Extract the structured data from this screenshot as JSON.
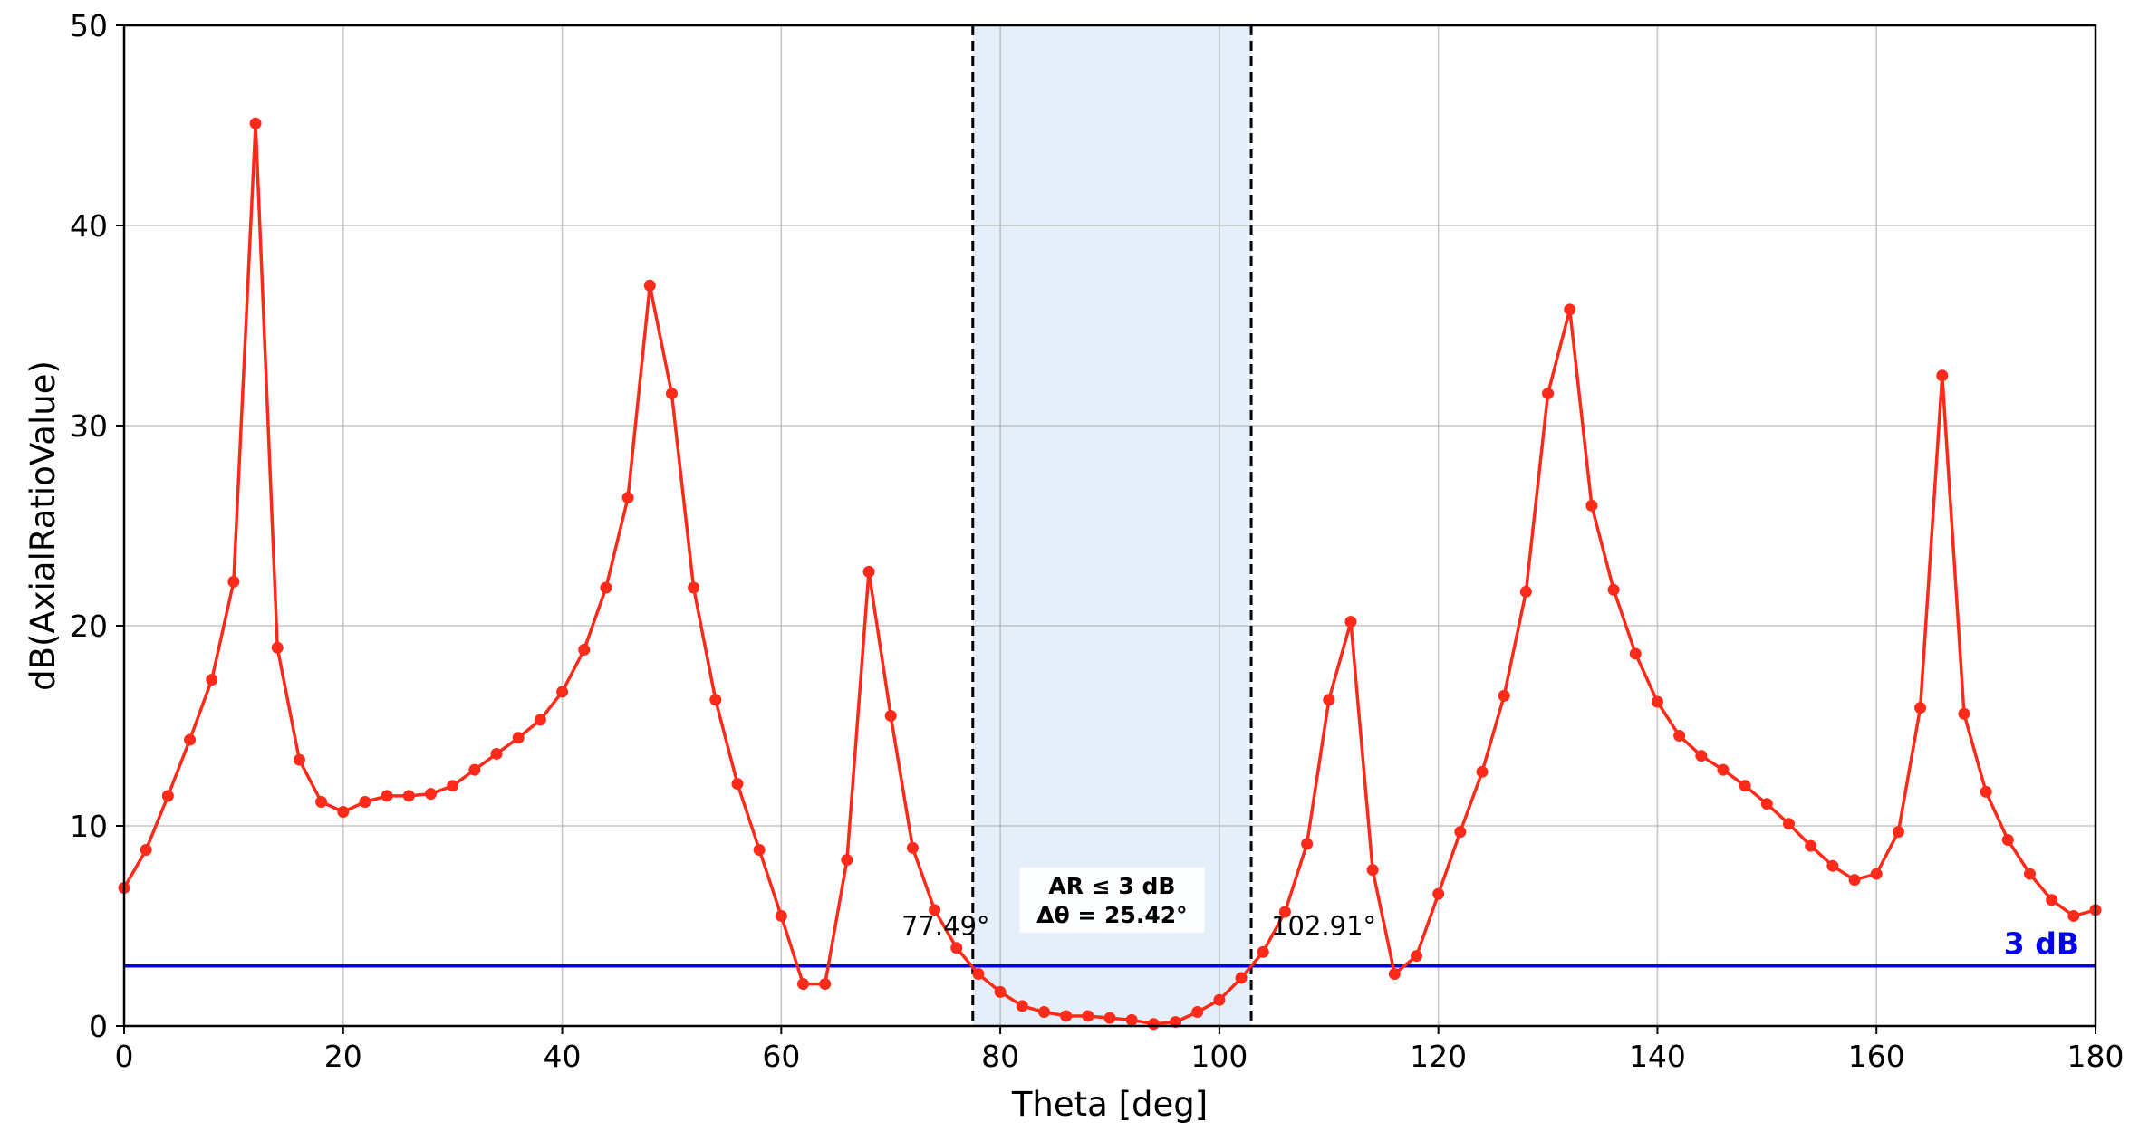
{
  "chart_data": {
    "type": "line",
    "xlabel": "Theta [deg]",
    "ylabel": "dB(AxialRatioValue)",
    "xlim": [
      0,
      180
    ],
    "ylim": [
      0,
      50
    ],
    "xticks": [
      0,
      20,
      40,
      60,
      80,
      100,
      120,
      140,
      160,
      180
    ],
    "yticks": [
      0,
      10,
      20,
      30,
      40,
      50
    ],
    "grid": true,
    "series": [
      {
        "color": "#ff2a1a",
        "marker": "circle",
        "x": [
          0,
          2,
          4,
          6,
          8,
          10,
          12,
          14,
          16,
          18,
          20,
          22,
          24,
          26,
          28,
          30,
          32,
          34,
          36,
          38,
          40,
          42,
          44,
          46,
          48,
          50,
          52,
          54,
          56,
          58,
          60,
          62,
          64,
          66,
          68,
          70,
          72,
          74,
          76,
          78,
          80,
          82,
          84,
          86,
          88,
          90,
          92,
          94,
          96,
          98,
          100,
          102,
          104,
          106,
          108,
          110,
          112,
          114,
          116,
          118,
          120,
          122,
          124,
          126,
          128,
          130,
          132,
          134,
          136,
          138,
          140,
          142,
          144,
          146,
          148,
          150,
          152,
          154,
          156,
          158,
          160,
          162,
          164,
          166,
          168,
          170,
          172,
          174,
          176,
          178,
          180
        ],
        "values": [
          6.9,
          8.8,
          11.5,
          14.3,
          17.3,
          22.2,
          45.1,
          18.9,
          13.3,
          11.2,
          10.7,
          11.2,
          11.5,
          11.5,
          11.6,
          12.0,
          12.8,
          13.6,
          14.4,
          15.3,
          16.7,
          18.8,
          21.9,
          26.4,
          37.0,
          31.6,
          21.9,
          16.3,
          12.1,
          8.8,
          5.5,
          2.1,
          2.1,
          8.3,
          22.7,
          15.5,
          8.9,
          5.8,
          3.9,
          2.6,
          1.7,
          1.0,
          0.7,
          0.5,
          0.5,
          0.4,
          0.3,
          0.1,
          0.2,
          0.7,
          1.3,
          2.4,
          3.7,
          5.7,
          9.1,
          16.3,
          20.2,
          7.8,
          2.6,
          3.5,
          6.6,
          9.7,
          12.7,
          16.5,
          21.7,
          31.6,
          35.8,
          26.0,
          21.8,
          18.6,
          16.2,
          14.5,
          13.5,
          12.8,
          12.0,
          11.1,
          10.1,
          9.0,
          8.0,
          7.3,
          7.6,
          9.7,
          15.9,
          32.5,
          15.6,
          11.7,
          9.3,
          7.6,
          6.3,
          5.5,
          5.8
        ]
      }
    ],
    "reference_line": {
      "y": 3,
      "label": "3 dB",
      "color": "#0000ee"
    },
    "band": {
      "x_start": 77.49,
      "x_end": 102.91,
      "fill": "#dbe9f8"
    },
    "band_edge_labels": [
      "77.49°",
      "102.91°"
    ],
    "band_annotation": {
      "line1": "AR ≤ 3 dB",
      "line2": "Δθ = 25.42°"
    }
  }
}
